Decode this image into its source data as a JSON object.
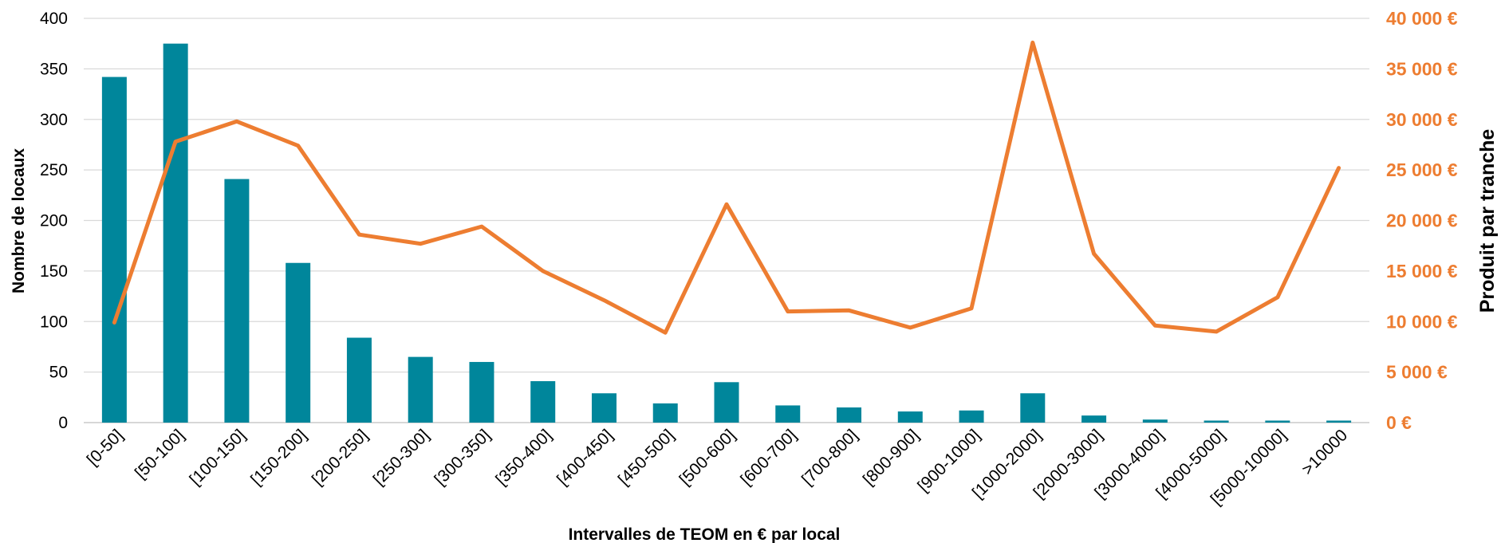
{
  "chart_data": {
    "type": "bar",
    "categories": [
      "[0-50]",
      "[50-100]",
      "[100-150]",
      "[150-200]",
      "[200-250]",
      "[250-300]",
      "[300-350]",
      "[350-400]",
      "[400-450]",
      "[450-500]",
      "[500-600]",
      "[600-700]",
      "[700-800]",
      "[800-900]",
      "[900-1000]",
      "[1000-2000]",
      "[2000-3000]",
      "[3000-4000]",
      "[4000-5000]",
      "[5000-10000]",
      ">10000"
    ],
    "series": [
      {
        "type": "bar",
        "axis": "left",
        "color": "#00869B",
        "values": [
          342,
          375,
          241,
          158,
          84,
          65,
          60,
          41,
          29,
          19,
          40,
          17,
          15,
          11,
          12,
          29,
          7,
          3,
          2,
          2,
          2
        ]
      },
      {
        "type": "line",
        "axis": "right",
        "color": "#ED7D31",
        "values": [
          9900,
          27800,
          29800,
          27400,
          18600,
          17700,
          19400,
          15000,
          12100,
          8900,
          21600,
          11000,
          11100,
          9400,
          11300,
          37600,
          16700,
          9600,
          9000,
          12400,
          25200
        ]
      }
    ],
    "xlabel": "Intervalles de TEOM en € par local",
    "ylabel": "Nombre de locaux",
    "ylabel_right": "Produit par tranche",
    "ylim": [
      0,
      400
    ],
    "ylim_right": [
      0,
      40000
    ],
    "yticks": [
      "0",
      "50",
      "100",
      "150",
      "200",
      "250",
      "300",
      "350",
      "400"
    ],
    "yticks_right": [
      "0 €",
      "5 000 €",
      "10 000 €",
      "15 000 €",
      "20 000 €",
      "25 000 €",
      "30 000 €",
      "35 000 €",
      "40 000 €"
    ],
    "grid": true,
    "legend": "none"
  }
}
